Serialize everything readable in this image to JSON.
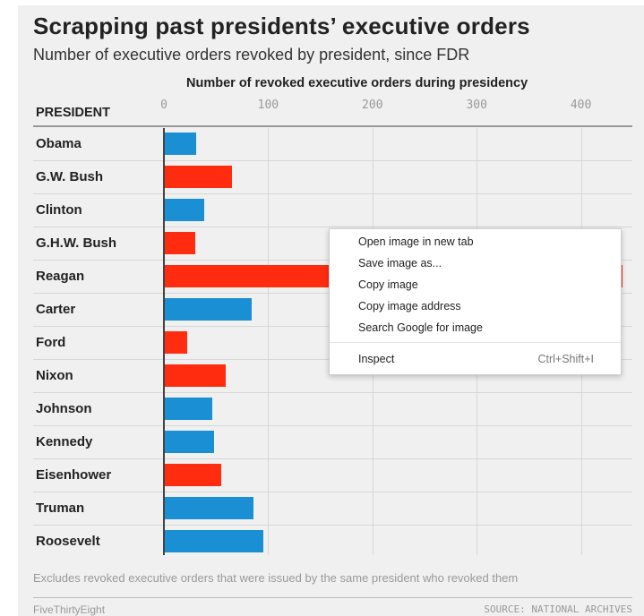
{
  "title": "Scrapping past presidents’ executive orders",
  "subtitle": "Number of executive orders revoked by president, since FDR",
  "column_header": "PRESIDENT",
  "footnote": "Excludes revoked executive orders that were issued by the same president who revoked them",
  "brand": "FiveThirtyEight",
  "source": "SOURCE: NATIONAL ARCHIVES",
  "colors": {
    "democrat": "#1a8fd4",
    "republican": "#ff2c10",
    "panel": "#f0f0f0"
  },
  "context_menu": {
    "items": [
      {
        "label": "Open image in new tab",
        "shortcut": ""
      },
      {
        "label": "Save image as...",
        "shortcut": ""
      },
      {
        "label": "Copy image",
        "shortcut": ""
      },
      {
        "label": "Copy image address",
        "shortcut": ""
      },
      {
        "label": "Search Google for image",
        "shortcut": ""
      },
      {
        "label": "Inspect",
        "shortcut": "Ctrl+Shift+I"
      }
    ]
  },
  "chart_data": {
    "type": "bar",
    "orientation": "horizontal",
    "title": "Scrapping past presidents’ executive orders",
    "subtitle": "Number of executive orders revoked by president, since FDR",
    "xlabel": "Number of revoked executive orders during presidency",
    "ylabel": "PRESIDENT",
    "xlim": [
      0,
      440
    ],
    "xticks": [
      0,
      100,
      200,
      300,
      400
    ],
    "grid": true,
    "categories": [
      "Obama",
      "G.W. Bush",
      "Clinton",
      "G.H.W. Bush",
      "Reagan",
      "Carter",
      "Ford",
      "Nixon",
      "Johnson",
      "Kennedy",
      "Eisenhower",
      "Truman",
      "Roosevelt"
    ],
    "values": [
      31,
      65,
      39,
      30,
      440,
      84,
      22,
      59,
      46,
      48,
      55,
      86,
      95
    ],
    "party": [
      "democrat",
      "republican",
      "democrat",
      "republican",
      "republican",
      "democrat",
      "republican",
      "republican",
      "democrat",
      "democrat",
      "republican",
      "democrat",
      "democrat"
    ]
  }
}
